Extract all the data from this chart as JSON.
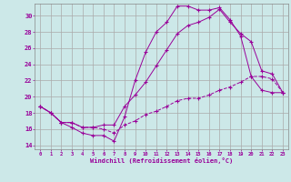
{
  "xlabel": "Windchill (Refroidissement éolien,°C)",
  "background_color": "#cce8e8",
  "grid_color": "#aaaaaa",
  "line_color": "#990099",
  "xlim": [
    -0.5,
    23.5
  ],
  "ylim": [
    13.5,
    31.5
  ],
  "yticks": [
    14,
    16,
    18,
    20,
    22,
    24,
    26,
    28,
    30
  ],
  "xticks": [
    0,
    1,
    2,
    3,
    4,
    5,
    6,
    7,
    8,
    9,
    10,
    11,
    12,
    13,
    14,
    15,
    16,
    17,
    18,
    19,
    20,
    21,
    22,
    23
  ],
  "line1_x": [
    0,
    1,
    2,
    3,
    4,
    5,
    6,
    7,
    8,
    9,
    10,
    11,
    12,
    13,
    14,
    15,
    16,
    17,
    18,
    19,
    20,
    21,
    22,
    23
  ],
  "line1_y": [
    18.8,
    18.0,
    16.8,
    16.2,
    15.5,
    15.2,
    15.2,
    14.5,
    17.5,
    22.0,
    25.5,
    28.0,
    29.2,
    31.2,
    31.2,
    30.7,
    30.7,
    31.0,
    29.5,
    27.5,
    22.5,
    20.8,
    20.5,
    20.5
  ],
  "line2_x": [
    0,
    1,
    2,
    3,
    4,
    5,
    6,
    7,
    8,
    9,
    10,
    11,
    12,
    13,
    14,
    15,
    16,
    17,
    18,
    19,
    20,
    21,
    22,
    23
  ],
  "line2_y": [
    18.8,
    18.0,
    16.8,
    16.8,
    16.2,
    16.2,
    16.0,
    15.5,
    16.5,
    17.0,
    17.8,
    18.2,
    18.8,
    19.5,
    19.8,
    19.8,
    20.2,
    20.8,
    21.2,
    21.8,
    22.5,
    22.5,
    22.2,
    20.5
  ],
  "line3_x": [
    0,
    1,
    2,
    3,
    4,
    5,
    6,
    7,
    8,
    9,
    10,
    11,
    12,
    13,
    14,
    15,
    16,
    17,
    18,
    19,
    20,
    21,
    22,
    23
  ],
  "line3_y": [
    18.8,
    18.0,
    16.8,
    16.8,
    16.2,
    16.2,
    16.5,
    16.5,
    18.8,
    20.2,
    21.8,
    23.8,
    25.8,
    27.8,
    28.8,
    29.2,
    29.8,
    30.8,
    29.2,
    27.8,
    26.8,
    23.2,
    22.8,
    20.5
  ]
}
